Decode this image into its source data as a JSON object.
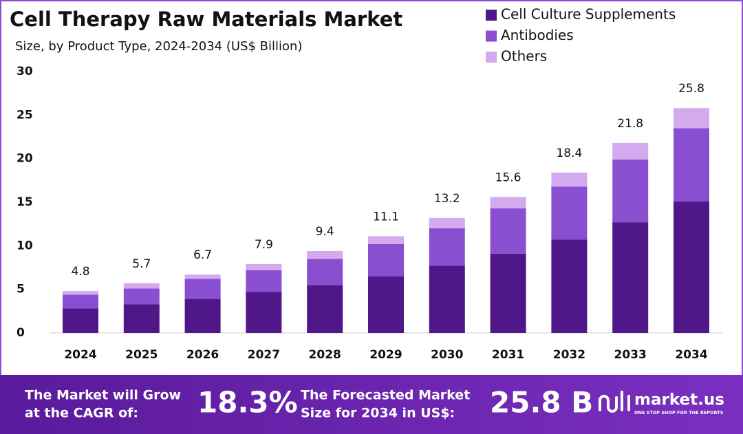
{
  "chart_data": {
    "type": "stacked_bar",
    "title": "Cell Therapy Raw Materials Market",
    "subtitle": "Size, by Product Type, 2024-2034 (US$ Billion)",
    "categories": [
      "2024",
      "2025",
      "2026",
      "2027",
      "2028",
      "2029",
      "2030",
      "2031",
      "2032",
      "2033",
      "2034"
    ],
    "series": [
      {
        "name": "Cell Culture Supplements",
        "color": "#4f1787",
        "values": [
          2.8,
          3.3,
          3.9,
          4.7,
          5.5,
          6.5,
          7.7,
          9.1,
          10.7,
          12.7,
          15.1
        ]
      },
      {
        "name": "Antibodies",
        "color": "#8a4fd0",
        "values": [
          1.6,
          1.8,
          2.3,
          2.5,
          3.0,
          3.7,
          4.3,
          5.2,
          6.1,
          7.2,
          8.4
        ]
      },
      {
        "name": "Others",
        "color": "#d4aaee",
        "values": [
          0.4,
          0.6,
          0.5,
          0.7,
          0.9,
          0.9,
          1.2,
          1.3,
          1.6,
          1.9,
          2.3
        ]
      }
    ],
    "totals": [
      4.8,
      5.7,
      6.7,
      7.9,
      9.4,
      11.1,
      13.2,
      15.6,
      18.4,
      21.8,
      25.8
    ],
    "ylim": [
      0,
      30
    ],
    "yticks": [
      0,
      5,
      10,
      15,
      20,
      25,
      30
    ],
    "grid": false,
    "legend": "top-right"
  },
  "banner": {
    "cagr_text": [
      "The Market will Grow",
      "at the CAGR of:"
    ],
    "cagr": "18.3%",
    "forecast_text": [
      "The Forecasted Market",
      "Size for 2034 in US$:"
    ],
    "forecast": "25.8 B",
    "brand": "market.us",
    "tagline": "ONE STOP SHOP FOR THE REPORTS"
  }
}
